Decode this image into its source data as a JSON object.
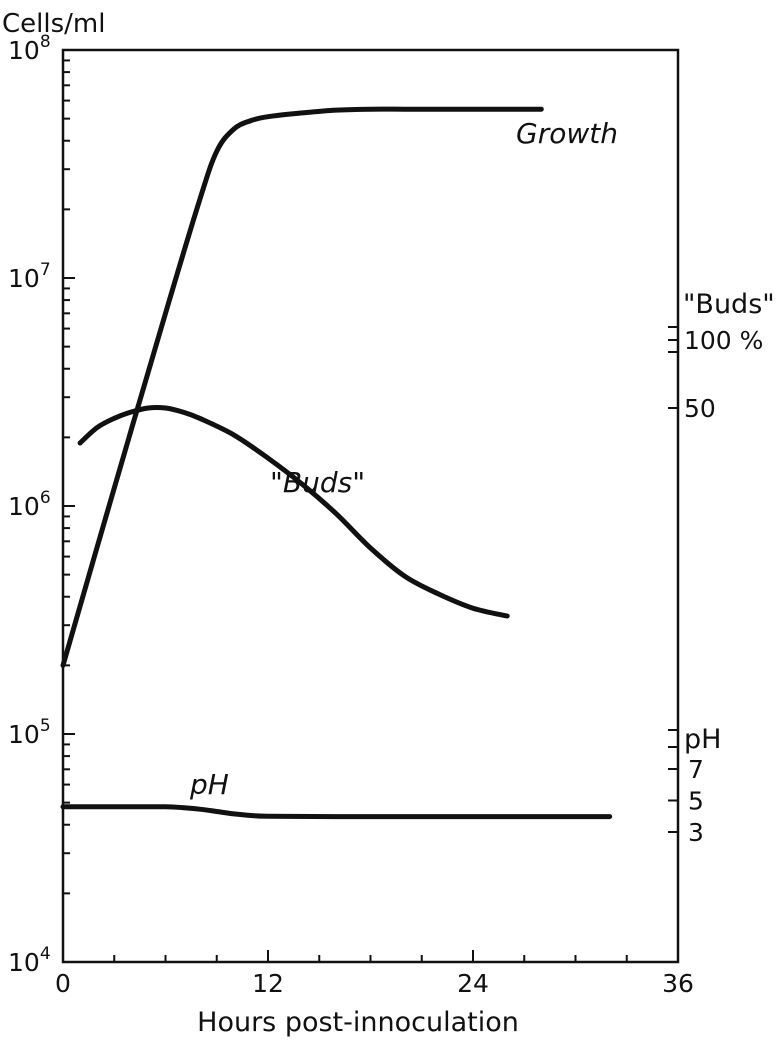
{
  "chart_data": {
    "type": "line",
    "title": "",
    "xlabel": "Hours post-innoculation",
    "ylabel": "Cells/ml",
    "y_scale": "log",
    "xlim": [
      0,
      36
    ],
    "ylim": [
      10000,
      100000000
    ],
    "x_ticks": [
      "0",
      "12",
      "24",
      "36"
    ],
    "y_ticks": [
      {
        "base": "10",
        "exp": "8"
      },
      {
        "base": "10",
        "exp": "7"
      },
      {
        "base": "10",
        "exp": "6"
      },
      {
        "base": "10",
        "exp": "5"
      },
      {
        "base": "10",
        "exp": "4"
      }
    ],
    "right_axis_buds": {
      "label": "\"Buds\"",
      "ticks": [
        {
          "value": 100,
          "text": "100 %"
        },
        {
          "value": 50,
          "text": "50"
        }
      ]
    },
    "right_axis_ph": {
      "label": "pH",
      "ticks": [
        {
          "value": 7,
          "text": "7"
        },
        {
          "value": 5,
          "text": "5"
        },
        {
          "value": 3,
          "text": "3"
        }
      ]
    },
    "series": [
      {
        "name": "Growth",
        "axis": "cells",
        "x": [
          0,
          3,
          6,
          8,
          9,
          10,
          11,
          12,
          14,
          16,
          18,
          20,
          22,
          24,
          26,
          28
        ],
        "y": [
          200000,
          1200000,
          7000000,
          22000000,
          36000000,
          45000000,
          49000000,
          51000000,
          53000000,
          54500000,
          55000000,
          55000000,
          55000000,
          55000000,
          55000000,
          55000000
        ]
      },
      {
        "name": "\"Buds\"",
        "axis": "buds_percent",
        "x": [
          1,
          2,
          3,
          4,
          5,
          6,
          7,
          8,
          10,
          12,
          14,
          16,
          18,
          20,
          22,
          24,
          26
        ],
        "y": [
          35,
          41,
          45,
          48,
          50,
          50,
          48,
          45,
          38,
          30,
          23,
          17,
          12,
          9,
          7.5,
          6.5,
          6
        ]
      },
      {
        "name": "pH",
        "axis": "ph",
        "x": [
          0,
          2,
          4,
          6,
          7,
          8,
          9,
          10,
          11,
          12,
          16,
          20,
          24,
          28,
          32
        ],
        "y": [
          4.6,
          4.6,
          4.6,
          4.6,
          4.55,
          4.45,
          4.3,
          4.15,
          4.05,
          4.0,
          3.98,
          3.98,
          3.98,
          3.98,
          3.98
        ]
      }
    ]
  }
}
